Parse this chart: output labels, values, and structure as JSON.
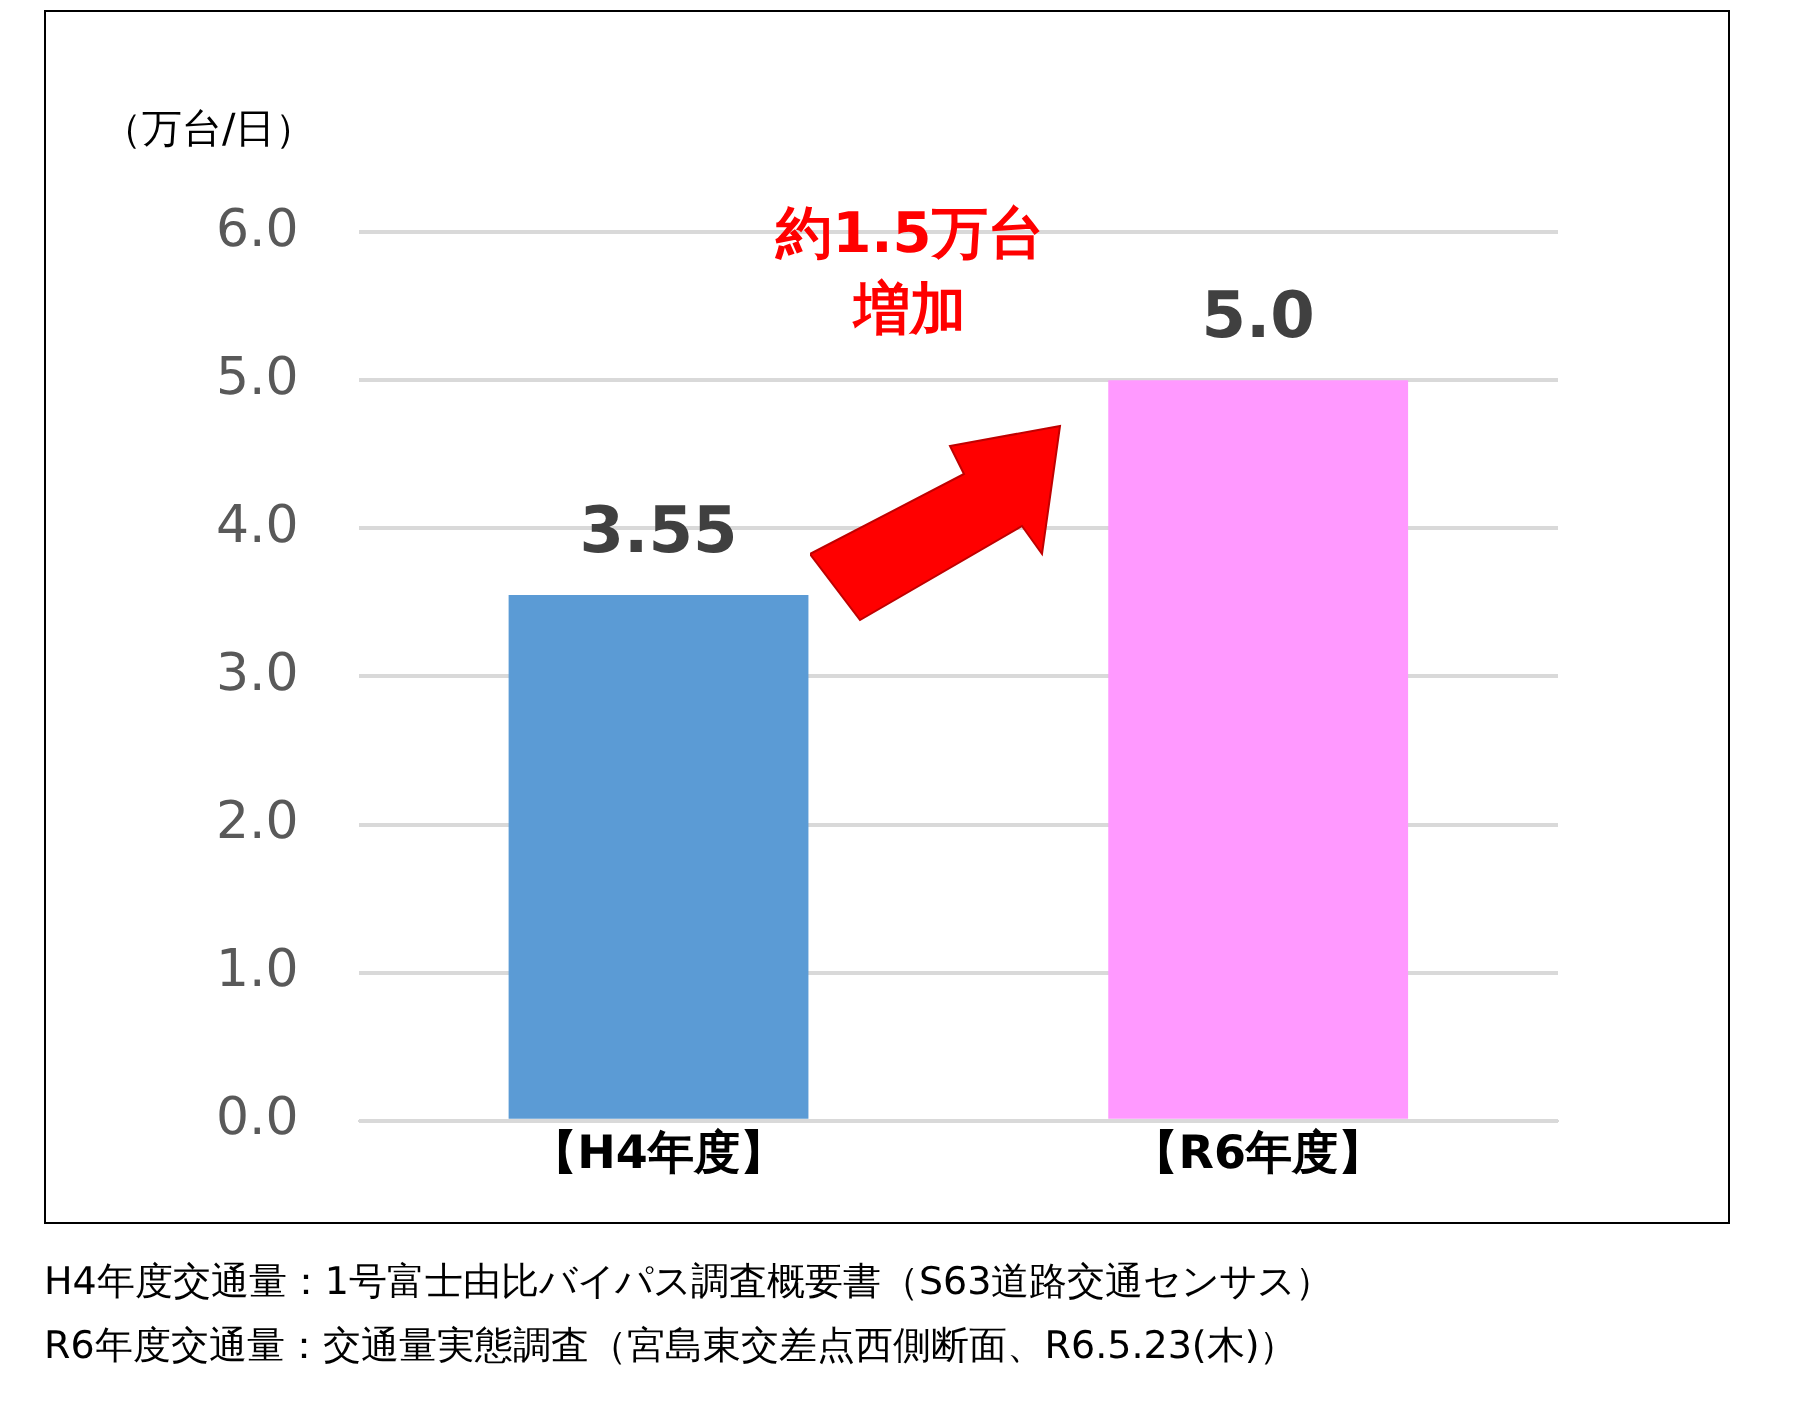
{
  "chart_data": {
    "type": "bar",
    "ylabel": "（万台/日）",
    "categories": [
      "【H4年度】",
      "【R6年度】"
    ],
    "values": [
      3.55,
      5.0
    ],
    "colors": [
      "#5b9bd5",
      "#ff99ff"
    ],
    "value_labels": [
      "3.55",
      "5.0"
    ],
    "ylim": [
      0,
      6
    ],
    "yticks": [
      {
        "value": 0,
        "label": "0.0"
      },
      {
        "value": 1,
        "label": "1.0"
      },
      {
        "value": 2,
        "label": "2.0"
      },
      {
        "value": 3,
        "label": "3.0"
      },
      {
        "value": 4,
        "label": "4.0"
      },
      {
        "value": 5,
        "label": "5.0"
      },
      {
        "value": 6,
        "label": "6.0"
      }
    ],
    "grid": "y",
    "annotations": [
      "約1.5万台増加",
      "H4年度交通量：1号富士由比バイパス調査概要書（S63道路交通センサス）",
      "R6年度交通量：交通量実態調査（宮島東交差点西側断面、R6.5.23(木)）"
    ]
  }
}
